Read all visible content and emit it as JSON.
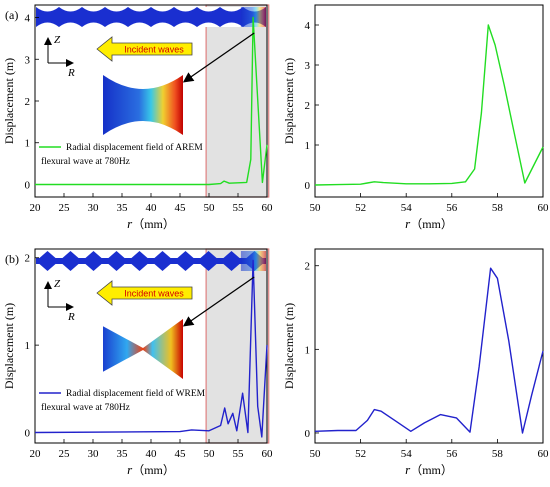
{
  "panels": [
    {
      "id": "a",
      "panel_label": "(a)",
      "legend": [
        "Radial displacement field of AREM",
        "flexural wave at 780Hz"
      ],
      "incident_label": "Incident waves",
      "axis_z": "Z",
      "axis_r": "R",
      "color": "#22dd22",
      "strip_shape": "arem",
      "inset_shape": "arem"
    },
    {
      "id": "b",
      "panel_label": "(b)",
      "legend": [
        "Radial displacement field of WREM",
        "flexural wave at 780Hz"
      ],
      "incident_label": "Incident waves",
      "axis_z": "Z",
      "axis_r": "R",
      "color": "#2222cc",
      "strip_shape": "wrem",
      "inset_shape": "wrem"
    }
  ],
  "ylabel": "Displacement (m)",
  "xlabel_var": "r",
  "xlabel_unit": "（mm）",
  "chart_data": [
    {
      "type": "line",
      "panel": "a-left",
      "xlim": [
        20,
        60
      ],
      "ylim": [
        -0.3,
        4.3
      ],
      "xticks": [
        "20",
        "25",
        "30",
        "35",
        "40",
        "45",
        "50",
        "55",
        "60"
      ],
      "yticks": [
        "0",
        "1",
        "2",
        "3",
        "4"
      ],
      "series": [
        {
          "values": [
            [
              20,
              0
            ],
            [
              50,
              0
            ],
            [
              52,
              0.02
            ],
            [
              52.6,
              0.08
            ],
            [
              53.5,
              0.03
            ],
            [
              56.5,
              0.05
            ],
            [
              57.2,
              0.6
            ],
            [
              57.6,
              4.0
            ],
            [
              58.2,
              2.5
            ],
            [
              59.2,
              0.05
            ],
            [
              60,
              0.95
            ]
          ]
        }
      ]
    },
    {
      "type": "line",
      "panel": "a-right",
      "xlim": [
        50,
        60
      ],
      "ylim": [
        -0.3,
        4.5
      ],
      "xticks": [
        "50",
        "52",
        "54",
        "56",
        "58",
        "60"
      ],
      "yticks": [
        "0",
        "1",
        "2",
        "3",
        "4"
      ],
      "series": [
        {
          "values": [
            [
              50,
              0
            ],
            [
              51,
              0.01
            ],
            [
              52,
              0.02
            ],
            [
              52.3,
              0.05
            ],
            [
              52.6,
              0.08
            ],
            [
              53,
              0.06
            ],
            [
              54,
              0.03
            ],
            [
              55,
              0.03
            ],
            [
              56,
              0.04
            ],
            [
              56.6,
              0.08
            ],
            [
              57,
              0.4
            ],
            [
              57.3,
              1.8
            ],
            [
              57.6,
              4.0
            ],
            [
              57.9,
              3.5
            ],
            [
              58.3,
              2.5
            ],
            [
              58.7,
              1.4
            ],
            [
              59.2,
              0.05
            ],
            [
              59.6,
              0.5
            ],
            [
              60,
              0.95
            ]
          ]
        }
      ]
    },
    {
      "type": "line",
      "panel": "b-left",
      "xlim": [
        20,
        60
      ],
      "ylim": [
        -0.12,
        2.1
      ],
      "xticks": [
        "20",
        "25",
        "30",
        "35",
        "40",
        "45",
        "50",
        "55",
        "60"
      ],
      "yticks": [
        "0",
        "1",
        "2"
      ],
      "series": [
        {
          "values": [
            [
              20,
              0
            ],
            [
              45,
              0.01
            ],
            [
              47,
              0.03
            ],
            [
              50,
              0.02
            ],
            [
              52,
              0.08
            ],
            [
              52.7,
              0.28
            ],
            [
              53.3,
              0.1
            ],
            [
              54.1,
              0.22
            ],
            [
              54.8,
              0.02
            ],
            [
              55.8,
              0.45
            ],
            [
              56.7,
              0.0
            ],
            [
              57.6,
              1.97
            ],
            [
              58.4,
              0.3
            ],
            [
              59.1,
              -0.05
            ],
            [
              60,
              1.0
            ]
          ]
        }
      ]
    },
    {
      "type": "line",
      "panel": "b-right",
      "xlim": [
        50,
        60
      ],
      "ylim": [
        -0.12,
        2.2
      ],
      "xticks": [
        "50",
        "52",
        "54",
        "56",
        "58",
        "60"
      ],
      "yticks": [
        "0",
        "1",
        "2"
      ],
      "series": [
        {
          "values": [
            [
              50,
              0.02
            ],
            [
              51,
              0.03
            ],
            [
              51.8,
              0.03
            ],
            [
              52.3,
              0.15
            ],
            [
              52.6,
              0.28
            ],
            [
              52.9,
              0.26
            ],
            [
              53.5,
              0.15
            ],
            [
              54.2,
              0.02
            ],
            [
              54.8,
              0.12
            ],
            [
              55.5,
              0.22
            ],
            [
              56.2,
              0.18
            ],
            [
              56.8,
              0.01
            ],
            [
              57.2,
              0.8
            ],
            [
              57.7,
              1.97
            ],
            [
              58.0,
              1.85
            ],
            [
              58.5,
              1.1
            ],
            [
              59.1,
              0.0
            ],
            [
              59.5,
              0.45
            ],
            [
              60,
              0.98
            ]
          ]
        }
      ]
    }
  ]
}
